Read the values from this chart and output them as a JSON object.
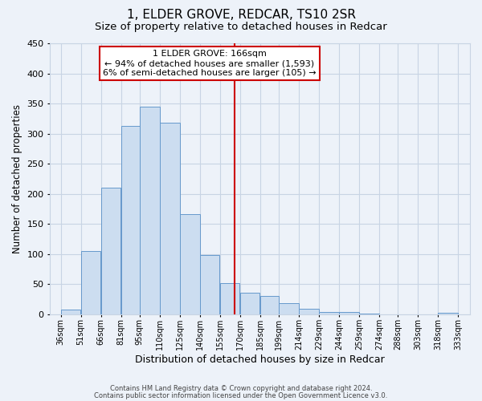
{
  "title": "1, ELDER GROVE, REDCAR, TS10 2SR",
  "subtitle": "Size of property relative to detached houses in Redcar",
  "xlabel": "Distribution of detached houses by size in Redcar",
  "ylabel": "Number of detached properties",
  "bar_left_edges": [
    36,
    51,
    66,
    81,
    95,
    110,
    125,
    140,
    155,
    170,
    185,
    199,
    214,
    229,
    244,
    259,
    274,
    288,
    303,
    318
  ],
  "bar_widths": [
    15,
    15,
    15,
    14,
    15,
    15,
    15,
    15,
    15,
    15,
    14,
    15,
    15,
    15,
    15,
    15,
    14,
    15,
    15,
    15
  ],
  "bar_heights": [
    7,
    105,
    210,
    313,
    345,
    318,
    166,
    98,
    51,
    35,
    30,
    18,
    9,
    4,
    4,
    1,
    0,
    0,
    0,
    2
  ],
  "x_tick_labels": [
    "36sqm",
    "51sqm",
    "66sqm",
    "81sqm",
    "95sqm",
    "110sqm",
    "125sqm",
    "140sqm",
    "155sqm",
    "170sqm",
    "185sqm",
    "199sqm",
    "214sqm",
    "229sqm",
    "244sqm",
    "259sqm",
    "274sqm",
    "288sqm",
    "303sqm",
    "318sqm",
    "333sqm"
  ],
  "x_tick_positions": [
    36,
    51,
    66,
    81,
    95,
    110,
    125,
    140,
    155,
    170,
    185,
    199,
    214,
    229,
    244,
    259,
    274,
    288,
    303,
    318,
    333
  ],
  "ylim": [
    0,
    450
  ],
  "yticks": [
    0,
    50,
    100,
    150,
    200,
    250,
    300,
    350,
    400,
    450
  ],
  "xlim": [
    28,
    342
  ],
  "vline_x": 166,
  "vline_color": "#cc0000",
  "bar_facecolor": "#ccddf0",
  "bar_edgecolor": "#6699cc",
  "grid_color": "#c8d4e4",
  "annotation_title": "1 ELDER GROVE: 166sqm",
  "annotation_line1": "← 94% of detached houses are smaller (1,593)",
  "annotation_line2": "6% of semi-detached houses are larger (105) →",
  "footer_line1": "Contains HM Land Registry data © Crown copyright and database right 2024.",
  "footer_line2": "Contains public sector information licensed under the Open Government Licence v3.0.",
  "background_color": "#edf2f9",
  "title_fontsize": 11,
  "subtitle_fontsize": 9.5,
  "xlabel_fontsize": 9,
  "ylabel_fontsize": 8.5,
  "tick_fontsize": 7,
  "ytick_fontsize": 8,
  "footer_fontsize": 6,
  "ann_fontsize": 8
}
